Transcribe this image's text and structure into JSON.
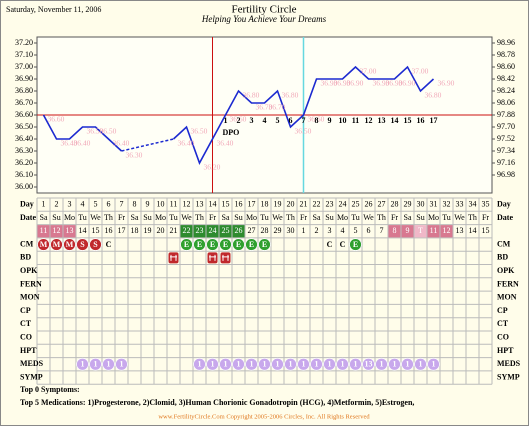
{
  "header_date": "Saturday, November 11, 2006",
  "chart_data": {
    "type": "line",
    "title": "Fertility Circle",
    "subtitle": "Helping You Achieve Your Dreams",
    "x_label": "Day",
    "x": [
      1,
      2,
      3,
      4,
      5,
      6,
      7,
      8,
      9,
      10,
      11,
      12,
      13,
      14,
      15,
      16,
      17,
      18,
      19,
      20,
      21,
      22,
      23,
      24,
      25,
      26,
      27,
      28,
      29,
      30,
      31,
      32,
      33,
      34,
      35
    ],
    "values": [
      36.6,
      36.4,
      36.4,
      36.5,
      36.5,
      36.4,
      36.3,
      null,
      null,
      null,
      36.4,
      36.5,
      36.2,
      36.4,
      36.6,
      36.8,
      36.7,
      36.7,
      36.8,
      36.5,
      36.6,
      36.9,
      36.9,
      36.9,
      37.0,
      36.9,
      36.9,
      36.9,
      37.0,
      36.8,
      36.9,
      null,
      null,
      null,
      null
    ],
    "value_labels": [
      "36.60",
      "36.40",
      "36.40",
      "36.50",
      "36.50",
      "36.40",
      "36.30",
      null,
      null,
      null,
      "36.40",
      "36.50",
      "36.20",
      "36.40",
      "36.60",
      "36.80",
      "36.70",
      "36.70",
      "36.80",
      "36.50",
      "36.60",
      "36.90",
      "36.90",
      "36.90",
      "37.00",
      "36.90",
      "36.90",
      "36.90",
      "37.00",
      "36.80",
      "36.90",
      null,
      null,
      null,
      null
    ],
    "color": "#1c2ad0",
    "label_color": "#f0a8b8",
    "ylim": [
      36.0,
      37.2
    ],
    "yticks": [
      {
        "value": 36.0,
        "label": "36.00"
      },
      {
        "value": 36.1,
        "label": "36.10"
      },
      {
        "value": 36.2,
        "label": "36.20"
      },
      {
        "value": 36.3,
        "label": "36.30"
      },
      {
        "value": 36.4,
        "label": "36.40"
      },
      {
        "value": 36.5,
        "label": "36.50"
      },
      {
        "value": 36.6,
        "label": "36.60"
      },
      {
        "value": 36.7,
        "label": "36.70"
      },
      {
        "value": 36.8,
        "label": "36.80"
      },
      {
        "value": 36.9,
        "label": "36.90"
      },
      {
        "value": 37.0,
        "label": "37.00"
      },
      {
        "value": 37.1,
        "label": "37.10"
      },
      {
        "value": 37.2,
        "label": "37.20"
      }
    ],
    "y2lim": [
      96.8,
      98.96
    ],
    "y2ticks": [
      96.98,
      97.16,
      97.34,
      97.52,
      {
        "value": 97.7,
        "label": "97.70"
      },
      97.88,
      98.06,
      98.24,
      98.42,
      {
        "value": 98.6,
        "label": "98.60"
      },
      98.78,
      98.96
    ],
    "coverline": 36.6,
    "coverline_color": "#cc1010",
    "ovulation_day": 14,
    "ovulation_color": "#cc1010",
    "marker_day": 21,
    "marker_color": "#66d8e0",
    "dpo": {
      "label": "DPO",
      "start_day": 15,
      "values": [
        1,
        2,
        3,
        4,
        5,
        6,
        7,
        8,
        9,
        10,
        11,
        12,
        13,
        14,
        15,
        16,
        17
      ]
    }
  },
  "table": {
    "date_label": "Date",
    "weekdays": [
      "Sa",
      "Su",
      "Mo",
      "Tu",
      "We",
      "Th",
      "Fr",
      "Sa",
      "Su",
      "Mo",
      "Tu",
      "We",
      "Th",
      "Fr",
      "Sa",
      "Su",
      "Mo",
      "Tu",
      "We",
      "Th",
      "Fr",
      "Sa",
      "Su",
      "Mo",
      "Tu",
      "We",
      "Th",
      "Fr",
      "Sa",
      "Su",
      "Mo",
      "Tu",
      "We",
      "Th",
      "Fr"
    ],
    "dates": [
      11,
      12,
      13,
      14,
      15,
      16,
      17,
      18,
      19,
      20,
      21,
      22,
      23,
      24,
      25,
      26,
      27,
      28,
      29,
      30,
      1,
      2,
      3,
      4,
      5,
      6,
      7,
      8,
      9,
      "T",
      11,
      12,
      13,
      14,
      15
    ],
    "date_highlights": [
      {
        "days": [
          1,
          2,
          3
        ],
        "color": "#d87890"
      },
      {
        "days": [
          12,
          13,
          14,
          15,
          16
        ],
        "color": "#2e8b2e"
      },
      {
        "days": [
          28,
          29,
          31,
          32
        ],
        "color": "#d87890"
      },
      {
        "days": [
          30
        ],
        "color": "#f0b8c8"
      }
    ],
    "cell_colors": {
      "M": "#c0282c",
      "S": "#c0282c",
      "E": "#2fa02f",
      "1": "#c8a8ec",
      "13": "#c8a8ec"
    },
    "rows": [
      {
        "label": "CM",
        "cells": [
          "M",
          "M",
          "M",
          "S",
          "S",
          "C",
          null,
          null,
          null,
          null,
          null,
          "E",
          "E",
          "E",
          "E",
          "E",
          "E",
          "E",
          null,
          null,
          null,
          null,
          "C",
          "C",
          "E",
          null,
          null,
          null,
          null,
          null,
          null,
          null,
          null,
          null,
          null
        ]
      },
      {
        "label": "BD",
        "icon_days": [
          11,
          14,
          15
        ],
        "icon_color": "#c0282c"
      },
      {
        "label": "OPK"
      },
      {
        "label": "FERN"
      },
      {
        "label": "MON"
      },
      {
        "label": "CP"
      },
      {
        "label": "CT"
      },
      {
        "label": "CO"
      },
      {
        "label": "HPT"
      },
      {
        "label": "MEDS",
        "cells": [
          null,
          null,
          null,
          "1",
          "1",
          "1",
          "1",
          null,
          null,
          null,
          null,
          null,
          "1",
          "1",
          "1",
          "1",
          "1",
          "1",
          "1",
          "1",
          "1",
          "1",
          "1",
          "1",
          "1",
          "13",
          "1",
          "1",
          "1",
          "1",
          "1",
          null,
          null,
          null,
          null
        ]
      },
      {
        "label": "SYMP"
      }
    ]
  },
  "footer": {
    "symptoms": "Top 0 Symptoms:",
    "medications": "Top 5 Medications: 1)Progesterone, 2)Clomid, 3)Human Chorionic Gonadotropin (HCG), 4)Metformin, 5)Estrogen,",
    "copyright": "www.FertilityCircle.Com Copyright 2005-2006 Circles, Inc. All Rights Reserved"
  }
}
